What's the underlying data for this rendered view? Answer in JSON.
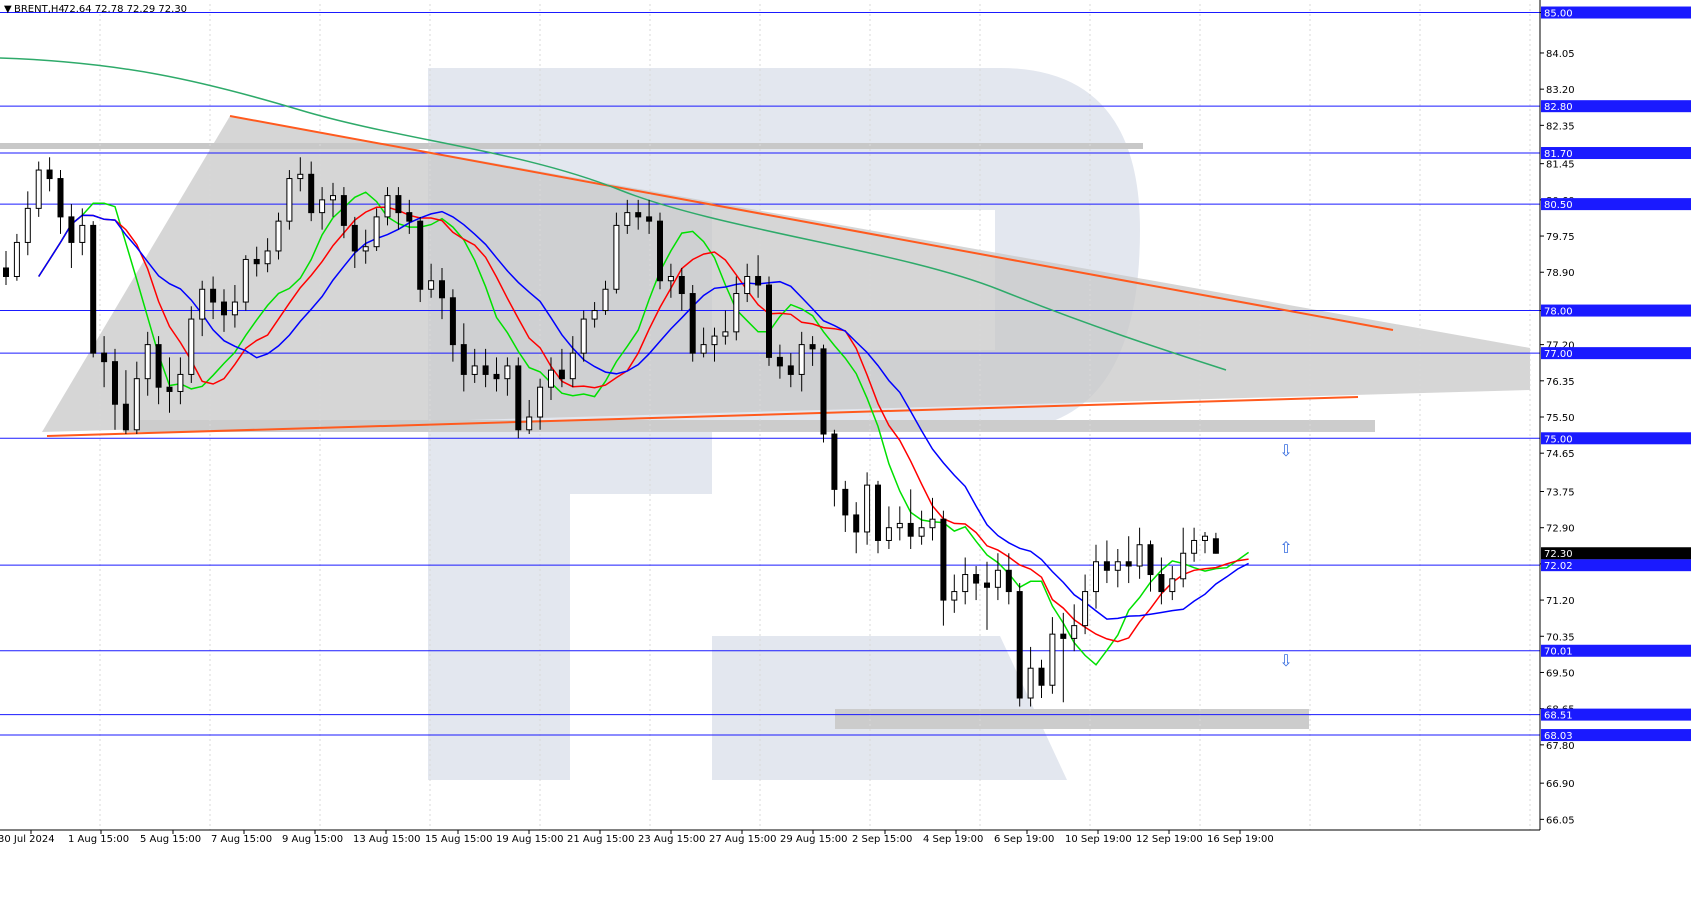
{
  "header": {
    "symbol": "BRENT,H4",
    "ohlc": "72.64 72.78 72.29 72.30"
  },
  "chart_data": {
    "type": "candlestick",
    "ylim": [
      65.8,
      85.2
    ],
    "y_ticks": [
      "85.00",
      "84.05",
      "83.20",
      "82.35",
      "81.45",
      "80.60",
      "79.75",
      "78.90",
      "78.00",
      "77.20",
      "76.35",
      "75.50",
      "74.65",
      "73.75",
      "72.90",
      "72.05",
      "71.20",
      "70.35",
      "69.50",
      "68.65",
      "67.80",
      "66.90",
      "66.05"
    ],
    "y_tick_values": [
      85.0,
      84.05,
      83.2,
      82.35,
      81.45,
      80.6,
      79.75,
      78.9,
      78.0,
      77.2,
      76.35,
      75.5,
      74.65,
      73.75,
      72.9,
      72.05,
      71.2,
      70.35,
      69.5,
      68.65,
      67.8,
      66.9,
      66.05
    ],
    "x_labels": [
      "30 Jul 2024",
      "1 Aug 15:00",
      "5 Aug 15:00",
      "7 Aug 15:00",
      "9 Aug 15:00",
      "13 Aug 15:00",
      "15 Aug 15:00",
      "19 Aug 15:00",
      "21 Aug 15:00",
      "23 Aug 15:00",
      "27 Aug 15:00",
      "29 Aug 15:00",
      "2 Sep 15:00",
      "4 Sep 19:00",
      "6 Sep 19:00",
      "10 Sep 19:00",
      "12 Sep 19:00",
      "16 Sep 19:00"
    ],
    "levels": [
      {
        "value": 85.0,
        "label": "85.00"
      },
      {
        "value": 82.8,
        "label": "82.80"
      },
      {
        "value": 81.7,
        "label": "81.70"
      },
      {
        "value": 80.5,
        "label": "80.50"
      },
      {
        "value": 78.0,
        "label": "78.00"
      },
      {
        "value": 77.0,
        "label": "77.00"
      },
      {
        "value": 75.0,
        "label": "75.00"
      },
      {
        "value": 72.02,
        "label": "72.02"
      },
      {
        "value": 70.01,
        "label": "70.01"
      },
      {
        "value": 68.51,
        "label": "68.51"
      },
      {
        "value": 68.03,
        "label": "68.03"
      }
    ],
    "current_price": {
      "value": 72.3,
      "label": "72.30"
    },
    "series": [
      {
        "kind": "candles",
        "points": [
          [
            79.0,
            78.8,
            79.4,
            78.6
          ],
          [
            78.8,
            79.6,
            79.8,
            78.7
          ],
          [
            79.6,
            80.4,
            80.8,
            79.3
          ],
          [
            80.4,
            81.3,
            81.5,
            80.2
          ],
          [
            81.3,
            81.1,
            81.6,
            80.8
          ],
          [
            81.1,
            80.2,
            81.3,
            79.8
          ],
          [
            80.2,
            79.6,
            80.5,
            79.0
          ],
          [
            79.6,
            80.0,
            80.4,
            79.3
          ],
          [
            80.0,
            77.0,
            80.1,
            76.9
          ],
          [
            77.0,
            76.8,
            77.4,
            76.2
          ],
          [
            76.8,
            75.8,
            77.1,
            75.2
          ],
          [
            75.8,
            75.2,
            76.6,
            75.1
          ],
          [
            75.2,
            76.4,
            76.8,
            75.1
          ],
          [
            76.4,
            77.2,
            77.5,
            76.0
          ],
          [
            77.2,
            76.2,
            77.4,
            75.8
          ],
          [
            76.2,
            76.1,
            76.9,
            75.6
          ],
          [
            76.1,
            76.5,
            76.9,
            75.8
          ],
          [
            76.5,
            77.8,
            78.1,
            76.3
          ],
          [
            77.8,
            78.5,
            78.7,
            77.4
          ],
          [
            78.5,
            78.2,
            78.8,
            77.8
          ],
          [
            78.2,
            77.9,
            78.5,
            77.5
          ],
          [
            77.9,
            78.2,
            78.6,
            77.6
          ],
          [
            78.2,
            79.2,
            79.3,
            78.0
          ],
          [
            79.2,
            79.1,
            79.5,
            78.8
          ],
          [
            79.1,
            79.4,
            79.7,
            78.9
          ],
          [
            79.4,
            80.1,
            80.3,
            79.2
          ],
          [
            80.1,
            81.1,
            81.3,
            79.9
          ],
          [
            81.1,
            81.2,
            81.6,
            80.8
          ],
          [
            81.2,
            80.3,
            81.5,
            80.1
          ],
          [
            80.3,
            80.6,
            80.9,
            79.9
          ],
          [
            80.6,
            80.7,
            81.0,
            80.2
          ],
          [
            80.7,
            80.0,
            80.9,
            79.7
          ],
          [
            80.0,
            79.4,
            80.2,
            79.0
          ],
          [
            79.4,
            79.5,
            79.9,
            79.1
          ],
          [
            79.5,
            80.2,
            80.4,
            79.4
          ],
          [
            80.2,
            80.7,
            80.9,
            80.0
          ],
          [
            80.7,
            80.3,
            80.9,
            79.9
          ],
          [
            80.3,
            80.1,
            80.6,
            79.8
          ],
          [
            80.1,
            78.5,
            80.2,
            78.2
          ],
          [
            78.5,
            78.7,
            79.1,
            78.3
          ],
          [
            78.7,
            78.3,
            79.0,
            77.8
          ],
          [
            78.3,
            77.2,
            78.5,
            76.8
          ],
          [
            77.2,
            76.5,
            77.7,
            76.1
          ],
          [
            76.5,
            76.7,
            77.1,
            76.3
          ],
          [
            76.7,
            76.5,
            77.1,
            76.2
          ],
          [
            76.5,
            76.4,
            76.9,
            76.1
          ],
          [
            76.4,
            76.7,
            76.9,
            76.0
          ],
          [
            76.7,
            75.2,
            76.9,
            75.0
          ],
          [
            75.2,
            75.5,
            75.9,
            75.1
          ],
          [
            75.5,
            76.2,
            76.4,
            75.2
          ],
          [
            76.2,
            76.6,
            76.9,
            75.9
          ],
          [
            76.6,
            76.4,
            77.1,
            76.2
          ],
          [
            76.4,
            77.0,
            77.4,
            76.2
          ],
          [
            77.0,
            77.8,
            78.0,
            76.8
          ],
          [
            77.8,
            78.0,
            78.2,
            77.6
          ],
          [
            78.0,
            78.5,
            78.7,
            77.9
          ],
          [
            78.5,
            80.0,
            80.3,
            78.4
          ],
          [
            80.0,
            80.3,
            80.6,
            79.8
          ],
          [
            80.3,
            80.2,
            80.6,
            79.9
          ],
          [
            80.2,
            80.1,
            80.6,
            79.8
          ],
          [
            80.1,
            78.7,
            80.3,
            78.5
          ],
          [
            78.7,
            78.8,
            79.1,
            78.3
          ],
          [
            78.8,
            78.4,
            79.0,
            78.0
          ],
          [
            78.4,
            77.0,
            78.6,
            76.8
          ],
          [
            77.0,
            77.2,
            77.6,
            76.9
          ],
          [
            77.2,
            77.4,
            77.6,
            76.8
          ],
          [
            77.4,
            77.5,
            78.0,
            77.2
          ],
          [
            77.5,
            78.4,
            78.8,
            77.3
          ],
          [
            78.4,
            78.8,
            79.1,
            78.2
          ],
          [
            78.8,
            78.6,
            79.3,
            78.3
          ],
          [
            78.6,
            76.9,
            78.8,
            76.7
          ],
          [
            76.9,
            76.7,
            77.2,
            76.4
          ],
          [
            76.7,
            76.5,
            77.0,
            76.2
          ],
          [
            76.5,
            77.2,
            77.5,
            76.1
          ],
          [
            77.2,
            77.1,
            77.4,
            76.7
          ],
          [
            77.1,
            75.1,
            77.2,
            74.9
          ],
          [
            75.1,
            73.8,
            75.2,
            73.4
          ],
          [
            73.8,
            73.2,
            74.0,
            72.8
          ],
          [
            73.2,
            72.8,
            73.5,
            72.3
          ],
          [
            72.8,
            73.9,
            74.2,
            72.5
          ],
          [
            73.9,
            72.6,
            74.0,
            72.3
          ],
          [
            72.6,
            72.9,
            73.4,
            72.4
          ],
          [
            72.9,
            73.0,
            73.4,
            72.6
          ],
          [
            73.0,
            72.7,
            73.8,
            72.4
          ],
          [
            72.7,
            72.9,
            73.3,
            72.5
          ],
          [
            72.9,
            73.1,
            73.6,
            72.6
          ],
          [
            73.1,
            71.2,
            73.3,
            70.6
          ],
          [
            71.2,
            71.4,
            71.8,
            70.9
          ],
          [
            71.4,
            71.8,
            72.2,
            71.1
          ],
          [
            71.8,
            71.6,
            72.0,
            71.2
          ],
          [
            71.6,
            71.5,
            72.1,
            70.5
          ],
          [
            71.5,
            71.9,
            72.3,
            71.2
          ],
          [
            71.9,
            71.4,
            72.3,
            71.1
          ],
          [
            71.4,
            68.9,
            71.6,
            68.7
          ],
          [
            68.9,
            69.6,
            70.1,
            68.7
          ],
          [
            69.6,
            69.2,
            69.8,
            68.9
          ],
          [
            69.2,
            70.4,
            70.8,
            69.0
          ],
          [
            70.4,
            70.3,
            70.9,
            68.8
          ],
          [
            70.3,
            70.6,
            71.1,
            70.0
          ],
          [
            70.6,
            71.4,
            71.8,
            70.4
          ],
          [
            71.4,
            72.1,
            72.5,
            71.0
          ],
          [
            72.1,
            71.9,
            72.6,
            71.6
          ],
          [
            71.9,
            72.1,
            72.4,
            71.5
          ],
          [
            72.1,
            72.0,
            72.7,
            71.6
          ],
          [
            72.0,
            72.5,
            72.9,
            71.7
          ],
          [
            72.5,
            71.8,
            72.6,
            71.4
          ],
          [
            71.8,
            71.4,
            72.2,
            71.1
          ],
          [
            71.4,
            71.7,
            72.0,
            71.2
          ],
          [
            71.7,
            72.3,
            72.9,
            71.5
          ],
          [
            72.3,
            72.6,
            72.9,
            72.1
          ],
          [
            72.6,
            72.7,
            72.8,
            72.3
          ],
          [
            72.64,
            72.3,
            72.78,
            72.29
          ]
        ]
      }
    ]
  }
}
